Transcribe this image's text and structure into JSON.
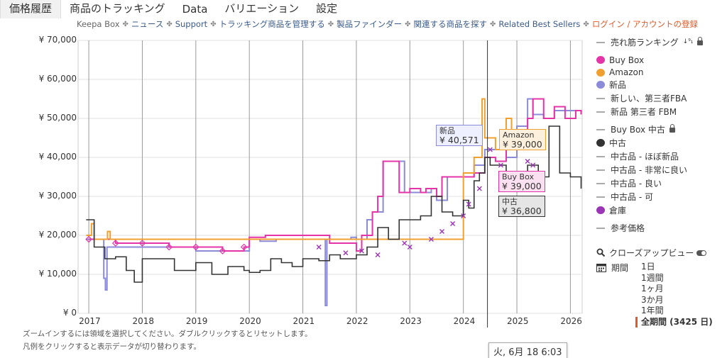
{
  "tabs": [
    "価格履歴",
    "商品のトラッキング",
    "Data",
    "バリエーション",
    "設定"
  ],
  "subnav": [
    "Keepa Box",
    "ニュース",
    "Support",
    "トラッキング商品を管理する",
    "製品ファインダー",
    "関連する商品を探す",
    "Related Best Sellers",
    "ログイン / アカウントの登録"
  ],
  "subnav_separator": "✤",
  "legend": {
    "sales_rank": "売れ筋ランキング",
    "sort_glyph": "↓⁹₁",
    "buy_box": "Buy Box",
    "amazon": "Amazon",
    "new": "新品",
    "new_fba": "新しい、第三者FBA",
    "new_fbm": "新品 第三者 FBM",
    "buy_box_used": "Buy Box 中古",
    "used": "中古",
    "used_like_new": "中古品 - ほぼ新品",
    "used_very_good": "中古品 - 非常に良い",
    "used_good": "中古品 - 良い",
    "used_acceptable": "中古品 - 可",
    "warehouse": "倉庫",
    "reference_price": "参考価格"
  },
  "colors": {
    "buy_box": "#e534a8",
    "amazon": "#f0a030",
    "new": "#8b8bd8",
    "used": "#333333",
    "warehouse": "#9a35b5",
    "accent": "#e05a28"
  },
  "closeup": {
    "label": "クローズアップビュー",
    "icon": "search-icon",
    "toggle_icon": "toggle-icon"
  },
  "period": {
    "label": "期間",
    "icon": "calendar-icon",
    "options": [
      "1日",
      "1週間",
      "1ヶ月",
      "3か月",
      "1年間"
    ],
    "selected": "全期間 (3425 日)"
  },
  "help": [
    "ズームインするには領域を選択してください。ダブルクリックするとリセットします。",
    "凡例をクリックすると表示データが切り替わります。"
  ],
  "tooltip": "火, 6月 18 6:03",
  "callouts": {
    "new": {
      "label": "新品",
      "value": "¥ 40,571"
    },
    "amazon": {
      "label": "Amazon",
      "value": "¥ 39,000"
    },
    "buy_box": {
      "label": "Buy Box",
      "value": "¥ 39,000"
    },
    "used": {
      "label": "中古",
      "value": "¥ 36,800"
    }
  },
  "chart_data": {
    "type": "line",
    "y_ticks": [
      "¥ 0",
      "¥ 10,000",
      "¥ 20,000",
      "¥ 30,000",
      "¥ 40,000",
      "¥ 50,000",
      "¥ 60,000",
      "¥ 70,000"
    ],
    "ylim": [
      0,
      70000
    ],
    "x_ticks": [
      "2017",
      "2018",
      "2019",
      "2020",
      "2021",
      "2022",
      "2023",
      "2024",
      "2025",
      "2026"
    ],
    "grid": true,
    "legend_position": "right",
    "series": [
      {
        "name": "Buy Box",
        "points": [
          [
            2017.0,
            19000
          ],
          [
            2017.5,
            18000
          ],
          [
            2018.0,
            18000
          ],
          [
            2018.5,
            17000
          ],
          [
            2019.0,
            17000
          ],
          [
            2019.5,
            16000
          ],
          [
            2019.9,
            17000
          ],
          [
            2020.0,
            19500
          ],
          [
            2020.3,
            20000
          ],
          [
            2020.7,
            20000
          ],
          [
            2021.0,
            20000
          ],
          [
            2021.5,
            18000
          ],
          [
            2022.0,
            16000
          ],
          [
            2022.1,
            20000
          ],
          [
            2022.3,
            26000
          ],
          [
            2022.4,
            30000
          ],
          [
            2022.5,
            34000
          ],
          [
            2022.5,
            39000
          ],
          [
            2022.7,
            39000
          ],
          [
            2022.8,
            31000
          ],
          [
            2023.0,
            32000
          ],
          [
            2023.2,
            31000
          ],
          [
            2023.3,
            32000
          ],
          [
            2023.5,
            30000
          ],
          [
            2023.6,
            35000
          ],
          [
            2024.0,
            35000
          ],
          [
            2024.2,
            36000
          ],
          [
            2024.4,
            40000
          ],
          [
            2024.6,
            39000
          ],
          [
            2024.8,
            42000
          ],
          [
            2025.0,
            45000
          ],
          [
            2025.2,
            50000
          ],
          [
            2025.3,
            55000
          ],
          [
            2025.5,
            50000
          ],
          [
            2025.7,
            53000
          ],
          [
            2025.9,
            50000
          ],
          [
            2026.1,
            52000
          ],
          [
            2026.2,
            51000
          ]
        ]
      },
      {
        "name": "Amazon",
        "points": [
          [
            2016.95,
            20000
          ],
          [
            2017.05,
            23000
          ],
          [
            2017.1,
            19000
          ],
          [
            2017.35,
            21000
          ],
          [
            2017.4,
            19000
          ],
          [
            2024.0,
            36000
          ],
          [
            2024.2,
            40000
          ],
          [
            2024.35,
            55000
          ],
          [
            2024.4,
            45000
          ],
          [
            2024.6,
            42000
          ],
          [
            2024.8,
            50000
          ],
          [
            2024.9,
            44000
          ]
        ]
      },
      {
        "name": "新品",
        "points": [
          [
            2016.95,
            19000
          ],
          [
            2017.2,
            19000
          ],
          [
            2017.28,
            9000
          ],
          [
            2017.31,
            6000
          ],
          [
            2017.34,
            17000
          ],
          [
            2017.5,
            17000
          ],
          [
            2018.0,
            17000
          ],
          [
            2019.0,
            16000
          ],
          [
            2019.9,
            16000
          ],
          [
            2020.0,
            19000
          ],
          [
            2020.2,
            18500
          ],
          [
            2020.5,
            19000
          ],
          [
            2021.0,
            19000
          ],
          [
            2021.35,
            19000
          ],
          [
            2021.42,
            2000
          ],
          [
            2021.45,
            19000
          ],
          [
            2021.9,
            19500
          ],
          [
            2022.0,
            19000
          ],
          [
            2022.2,
            24000
          ],
          [
            2022.3,
            26000
          ],
          [
            2022.5,
            39000
          ],
          [
            2022.75,
            39000
          ],
          [
            2022.9,
            31000
          ],
          [
            2023.0,
            31000
          ],
          [
            2023.4,
            32000
          ],
          [
            2023.5,
            29000
          ],
          [
            2023.7,
            35000
          ],
          [
            2024.0,
            35000
          ],
          [
            2024.2,
            38000
          ],
          [
            2024.4,
            42000
          ],
          [
            2024.8,
            40000
          ],
          [
            2025.0,
            48000
          ],
          [
            2025.2,
            55000
          ],
          [
            2025.3,
            51000
          ],
          [
            2025.5,
            50000
          ],
          [
            2025.7,
            52000
          ],
          [
            2026.2,
            51000
          ]
        ]
      },
      {
        "name": "中古",
        "points": [
          [
            2016.95,
            24000
          ],
          [
            2017.1,
            17000
          ],
          [
            2017.3,
            14000
          ],
          [
            2017.5,
            14500
          ],
          [
            2017.7,
            11000
          ],
          [
            2017.85,
            8000
          ],
          [
            2018.0,
            14000
          ],
          [
            2018.4,
            14000
          ],
          [
            2018.6,
            11000
          ],
          [
            2019.0,
            13000
          ],
          [
            2019.3,
            10000
          ],
          [
            2019.6,
            12000
          ],
          [
            2019.9,
            11000
          ],
          [
            2020.0,
            10500
          ],
          [
            2020.2,
            11000
          ],
          [
            2020.4,
            14000
          ],
          [
            2020.6,
            13000
          ],
          [
            2020.8,
            12000
          ],
          [
            2021.0,
            14000
          ],
          [
            2021.3,
            13500
          ],
          [
            2021.5,
            15000
          ],
          [
            2021.7,
            14000
          ],
          [
            2022.0,
            15000
          ],
          [
            2022.2,
            17000
          ],
          [
            2022.4,
            22000
          ],
          [
            2022.6,
            19000
          ],
          [
            2022.8,
            24000
          ],
          [
            2023.0,
            24000
          ],
          [
            2023.2,
            25000
          ],
          [
            2023.4,
            30000
          ],
          [
            2023.6,
            26000
          ],
          [
            2023.8,
            25000
          ],
          [
            2024.0,
            29000
          ],
          [
            2024.1,
            27000
          ],
          [
            2024.2,
            34000
          ],
          [
            2024.3,
            36000
          ],
          [
            2024.4,
            40000
          ],
          [
            2024.5,
            38000
          ],
          [
            2024.7,
            38000
          ],
          [
            2024.8,
            36000
          ],
          [
            2025.0,
            33000
          ],
          [
            2025.2,
            38000
          ],
          [
            2025.4,
            35000
          ],
          [
            2025.6,
            48000
          ],
          [
            2025.8,
            36000
          ],
          [
            2026.0,
            35000
          ],
          [
            2026.2,
            32000
          ]
        ]
      },
      {
        "name": "倉庫",
        "points": [
          [
            2021.3,
            17000
          ],
          [
            2021.8,
            15500
          ],
          [
            2022.1,
            16000
          ],
          [
            2022.4,
            15000
          ],
          [
            2022.9,
            18000
          ],
          [
            2023.0,
            17000
          ],
          [
            2023.4,
            19000
          ],
          [
            2023.6,
            21000
          ],
          [
            2023.8,
            23000
          ],
          [
            2024.0,
            25000
          ],
          [
            2024.1,
            28000
          ],
          [
            2024.3,
            32000
          ],
          [
            2024.5,
            42000
          ],
          [
            2024.7,
            38000
          ],
          [
            2025.0,
            35000
          ],
          [
            2025.2,
            39000
          ],
          [
            2025.3,
            38000
          ]
        ]
      }
    ]
  }
}
